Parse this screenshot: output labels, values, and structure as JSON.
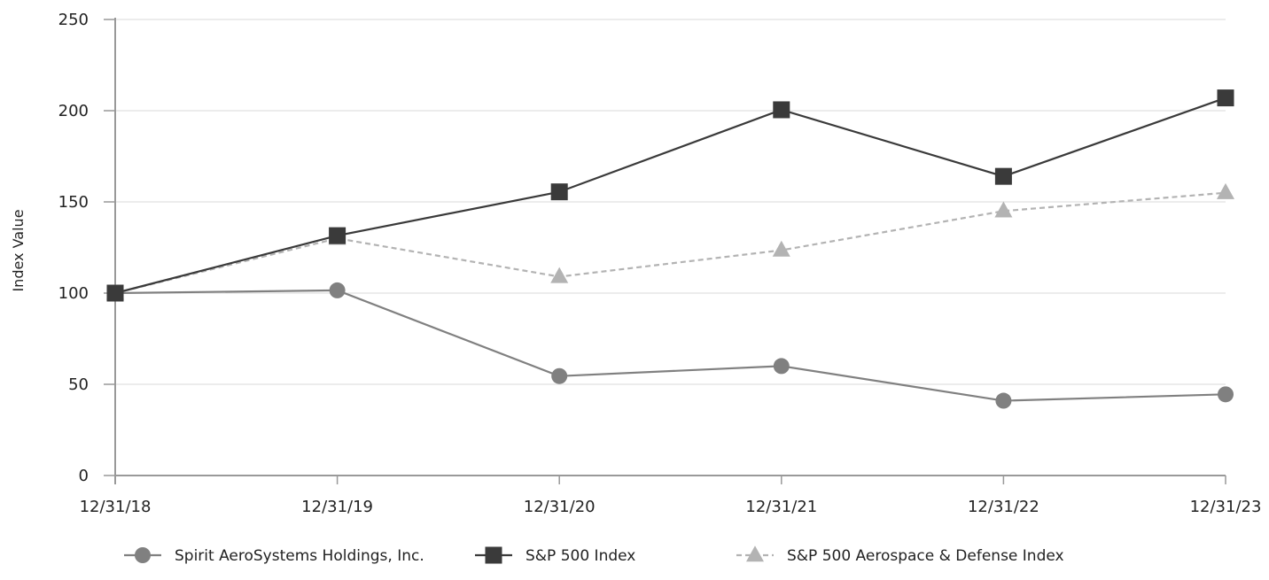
{
  "chart_data": {
    "type": "line",
    "ylabel": "Index Value",
    "xlabel": "",
    "title": "",
    "categories": [
      "12/31/18",
      "12/31/19",
      "12/31/20",
      "12/31/21",
      "12/31/22",
      "12/31/23"
    ],
    "ylim": [
      0,
      250
    ],
    "yticks": [
      0,
      50,
      100,
      150,
      200,
      250
    ],
    "grid": "horizontal",
    "legend_position": "bottom",
    "series": [
      {
        "name": "Spirit AeroSystems Holdings, Inc.",
        "values": [
          100,
          101.5,
          54.5,
          60,
          41,
          44.5
        ],
        "marker": "circle",
        "line_style": "solid",
        "color": "#808080"
      },
      {
        "name": "S&P 500 Index",
        "values": [
          100,
          131.5,
          155.5,
          200.5,
          164,
          207
        ],
        "marker": "square",
        "line_style": "solid",
        "color": "#3a3a3a"
      },
      {
        "name": "S&P 500 Aerospace & Defense Index",
        "values": [
          100,
          130,
          109,
          123.5,
          145,
          155
        ],
        "marker": "triangle",
        "line_style": "dashed",
        "color": "#b3b3b3"
      }
    ]
  }
}
